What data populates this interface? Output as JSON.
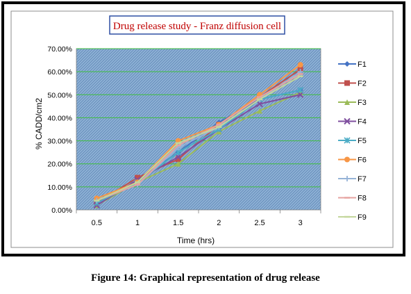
{
  "caption": "Figure 14: Graphical representation of drug release",
  "chart_data": {
    "type": "line",
    "title": "Drug release study - Franz diffusion cell",
    "xlabel": "Time (hrs)",
    "ylabel": "% CADD/cm2",
    "ylim": [
      0,
      70
    ],
    "y_ticks": [
      "0.00%",
      "10.00%",
      "20.00%",
      "30.00%",
      "40.00%",
      "50.00%",
      "60.00%",
      "70.00%"
    ],
    "categories": [
      "0.5",
      "1",
      "1.5",
      "2",
      "2.5",
      "3"
    ],
    "grid": true,
    "legend_position": "right",
    "series": [
      {
        "name": "F1",
        "color": "#4472C4",
        "marker": "diamond",
        "values": [
          2,
          13,
          25,
          38,
          48,
          52
        ]
      },
      {
        "name": "F2",
        "color": "#C0504D",
        "marker": "square",
        "values": [
          3,
          14,
          22,
          37,
          49,
          61
        ]
      },
      {
        "name": "F3",
        "color": "#9BBB59",
        "marker": "triangle",
        "values": [
          2,
          12,
          20,
          34,
          43,
          51
        ]
      },
      {
        "name": "F4",
        "color": "#7F4F9F",
        "marker": "x",
        "values": [
          2,
          13,
          23,
          35,
          46,
          50
        ]
      },
      {
        "name": "F5",
        "color": "#4BACC6",
        "marker": "star",
        "values": [
          3,
          12,
          25,
          35,
          48,
          52
        ]
      },
      {
        "name": "F6",
        "color": "#F79646",
        "marker": "circle",
        "values": [
          5,
          12,
          30,
          37,
          50,
          63
        ]
      },
      {
        "name": "F7",
        "color": "#95B3D7",
        "marker": "plus",
        "values": [
          4,
          11,
          27,
          36,
          48,
          60
        ]
      },
      {
        "name": "F8",
        "color": "#E6A3A0",
        "marker": "dash",
        "values": [
          4,
          11,
          28,
          37,
          49,
          59
        ]
      },
      {
        "name": "F9",
        "color": "#C3D69B",
        "marker": "dash",
        "values": [
          4,
          12,
          29,
          36,
          48,
          58
        ]
      }
    ]
  }
}
